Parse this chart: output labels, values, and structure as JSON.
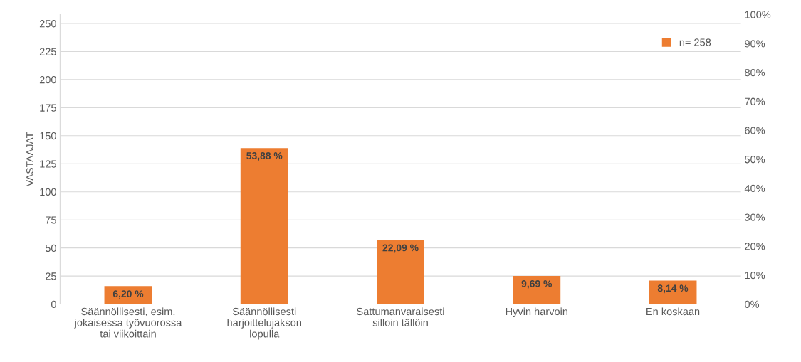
{
  "chart_data": {
    "type": "bar",
    "categories": [
      "Säännöllisesti, esim. jokaisessa työvuorossa tai viikoittain",
      "Säännöllisesti harjoittelujakson lopulla",
      "Sattumanvaraisesti silloin tällöin",
      "Hyvin harvoin",
      "En koskaan"
    ],
    "series": [
      {
        "name": "n= 258",
        "color": "#ed7d31",
        "axis": "y2",
        "values": [
          6.2,
          53.88,
          22.09,
          9.69,
          8.14
        ],
        "value_labels": [
          "6,20 %",
          "53,88 %",
          "22,09 %",
          "9,69 %",
          "8,14 %"
        ]
      }
    ],
    "ylabel": "VASTAAJAT",
    "ylim": [
      0,
      258
    ],
    "yticks": [
      0,
      25,
      50,
      75,
      100,
      125,
      150,
      175,
      200,
      225,
      250
    ],
    "y2lim": [
      0,
      100
    ],
    "y2ticks": [
      {
        "value": 0,
        "label": "0%"
      },
      {
        "value": 10,
        "label": "10%"
      },
      {
        "value": 20,
        "label": "20%"
      },
      {
        "value": 30,
        "label": "30%"
      },
      {
        "value": 40,
        "label": "40%"
      },
      {
        "value": 50,
        "label": "50%"
      },
      {
        "value": 60,
        "label": "60%"
      },
      {
        "value": 70,
        "label": "70%"
      },
      {
        "value": 80,
        "label": "80%"
      },
      {
        "value": 90,
        "label": "90%"
      },
      {
        "value": 100,
        "label": "100%"
      }
    ],
    "grid": "y",
    "legend": "top right"
  }
}
